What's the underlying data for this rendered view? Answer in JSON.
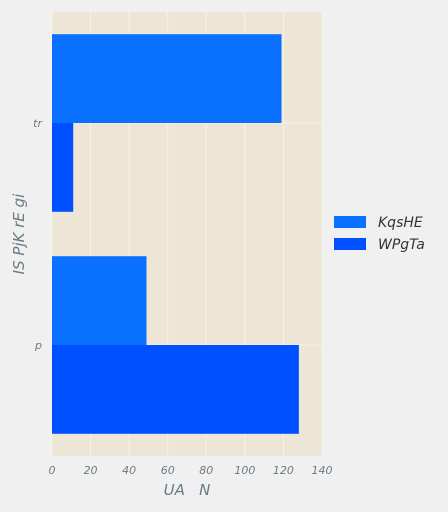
{
  "chart_data": {
    "type": "bar",
    "orientation": "horizontal",
    "categories": [
      "tr",
      "p"
    ],
    "series": [
      {
        "name": "KqsHE",
        "values": [
          119,
          49
        ],
        "color": "#0a70ff"
      },
      {
        "name": "WPgTa",
        "values": [
          11,
          128
        ],
        "color": "#0050ff"
      }
    ],
    "xlabel": "UA   N",
    "ylabel": "IS PjK rE gi",
    "xlim": [
      0,
      140
    ],
    "xticks": [
      0,
      20,
      40,
      60,
      80,
      100,
      120,
      140
    ],
    "grid": true,
    "legend_position": "right",
    "colors": {
      "background": "#f0f0f0",
      "plot_background": "#ede6d6",
      "grid": "#f7f3ea",
      "text": "#6b7b84"
    }
  }
}
